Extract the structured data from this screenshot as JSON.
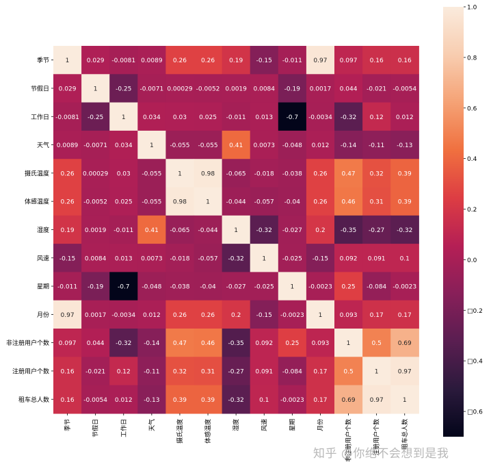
{
  "chart_data": {
    "type": "heatmap",
    "title": "",
    "xlabel": "",
    "ylabel": "",
    "categories": [
      "季节",
      "节假日",
      "工作日",
      "天气",
      "摄氏温度",
      "体感温度",
      "湿度",
      "风速",
      "星期",
      "月份",
      "非注册用户个数",
      "注册用户个数",
      "租车总人数"
    ],
    "cell_labels": [
      [
        "1",
        "0.029",
        "-0.0081",
        "0.0089",
        "0.26",
        "0.26",
        "0.19",
        "-0.15",
        "-0.011",
        "0.97",
        "0.097",
        "0.16",
        "0.16"
      ],
      [
        "0.029",
        "1",
        "-0.25",
        "-0.0071",
        "0.00029",
        "-0.0052",
        "0.0019",
        "0.0084",
        "-0.19",
        "0.0017",
        "0.044",
        "-0.021",
        "-0.0054"
      ],
      [
        "-0.0081",
        "-0.25",
        "1",
        "0.034",
        "0.03",
        "0.025",
        "-0.011",
        "0.013",
        "-0.7",
        "-0.0034",
        "-0.32",
        "0.12",
        "0.012"
      ],
      [
        "0.0089",
        "-0.0071",
        "0.034",
        "1",
        "-0.055",
        "-0.055",
        "0.41",
        "0.0073",
        "-0.048",
        "0.012",
        "-0.14",
        "-0.11",
        "-0.13"
      ],
      [
        "0.26",
        "0.00029",
        "0.03",
        "-0.055",
        "1",
        "0.98",
        "-0.065",
        "-0.018",
        "-0.038",
        "0.26",
        "0.47",
        "0.32",
        "0.39"
      ],
      [
        "0.26",
        "-0.0052",
        "0.025",
        "-0.055",
        "0.98",
        "1",
        "-0.044",
        "-0.057",
        "-0.04",
        "0.26",
        "0.46",
        "0.31",
        "0.39"
      ],
      [
        "0.19",
        "0.0019",
        "-0.011",
        "0.41",
        "-0.065",
        "-0.044",
        "1",
        "-0.32",
        "-0.027",
        "0.2",
        "-0.35",
        "-0.27",
        "-0.32"
      ],
      [
        "-0.15",
        "0.0084",
        "0.013",
        "0.0073",
        "-0.018",
        "-0.057",
        "-0.32",
        "1",
        "-0.025",
        "-0.15",
        "0.092",
        "0.091",
        "0.1"
      ],
      [
        "-0.011",
        "-0.19",
        "-0.7",
        "-0.048",
        "-0.038",
        "-0.04",
        "-0.027",
        "-0.025",
        "1",
        "-0.0023",
        "0.25",
        "-0.084",
        "-0.0023"
      ],
      [
        "0.97",
        "0.0017",
        "-0.0034",
        "0.012",
        "0.26",
        "0.26",
        "0.2",
        "-0.15",
        "-0.0023",
        "1",
        "0.093",
        "0.17",
        "0.17"
      ],
      [
        "0.097",
        "0.044",
        "-0.32",
        "-0.14",
        "0.47",
        "0.46",
        "-0.35",
        "0.092",
        "0.25",
        "0.093",
        "1",
        "0.5",
        "0.69"
      ],
      [
        "0.16",
        "-0.021",
        "0.12",
        "-0.11",
        "0.32",
        "0.31",
        "-0.27",
        "0.091",
        "-0.084",
        "0.17",
        "0.5",
        "1",
        "0.97"
      ],
      [
        "0.16",
        "-0.0054",
        "0.012",
        "-0.13",
        "0.39",
        "0.39",
        "-0.32",
        "0.1",
        "-0.0023",
        "0.17",
        "0.69",
        "0.97",
        "1"
      ]
    ],
    "colorbar": {
      "range": [
        -0.7,
        1.0
      ],
      "ticks": [
        1.0,
        0.8,
        0.6,
        0.4,
        0.2,
        0.0,
        -0.2,
        -0.4,
        -0.6
      ],
      "tick_labels": [
        "1.0",
        "0.8",
        "0.6",
        "0.4",
        "0.2",
        "0.0",
        "□0.2",
        "□0.4",
        "□0.6"
      ],
      "colormap": "rocket",
      "colormap_stops": [
        "#03051a",
        "#2b1a3c",
        "#5a1e51",
        "#881f59",
        "#b51f55",
        "#dd3d43",
        "#f0703f",
        "#f5a275",
        "#f8cdb0",
        "#faebdd"
      ]
    },
    "grid": false,
    "legend": "colorbar-right"
  },
  "watermark": "知乎 @你绝不会想到是我"
}
